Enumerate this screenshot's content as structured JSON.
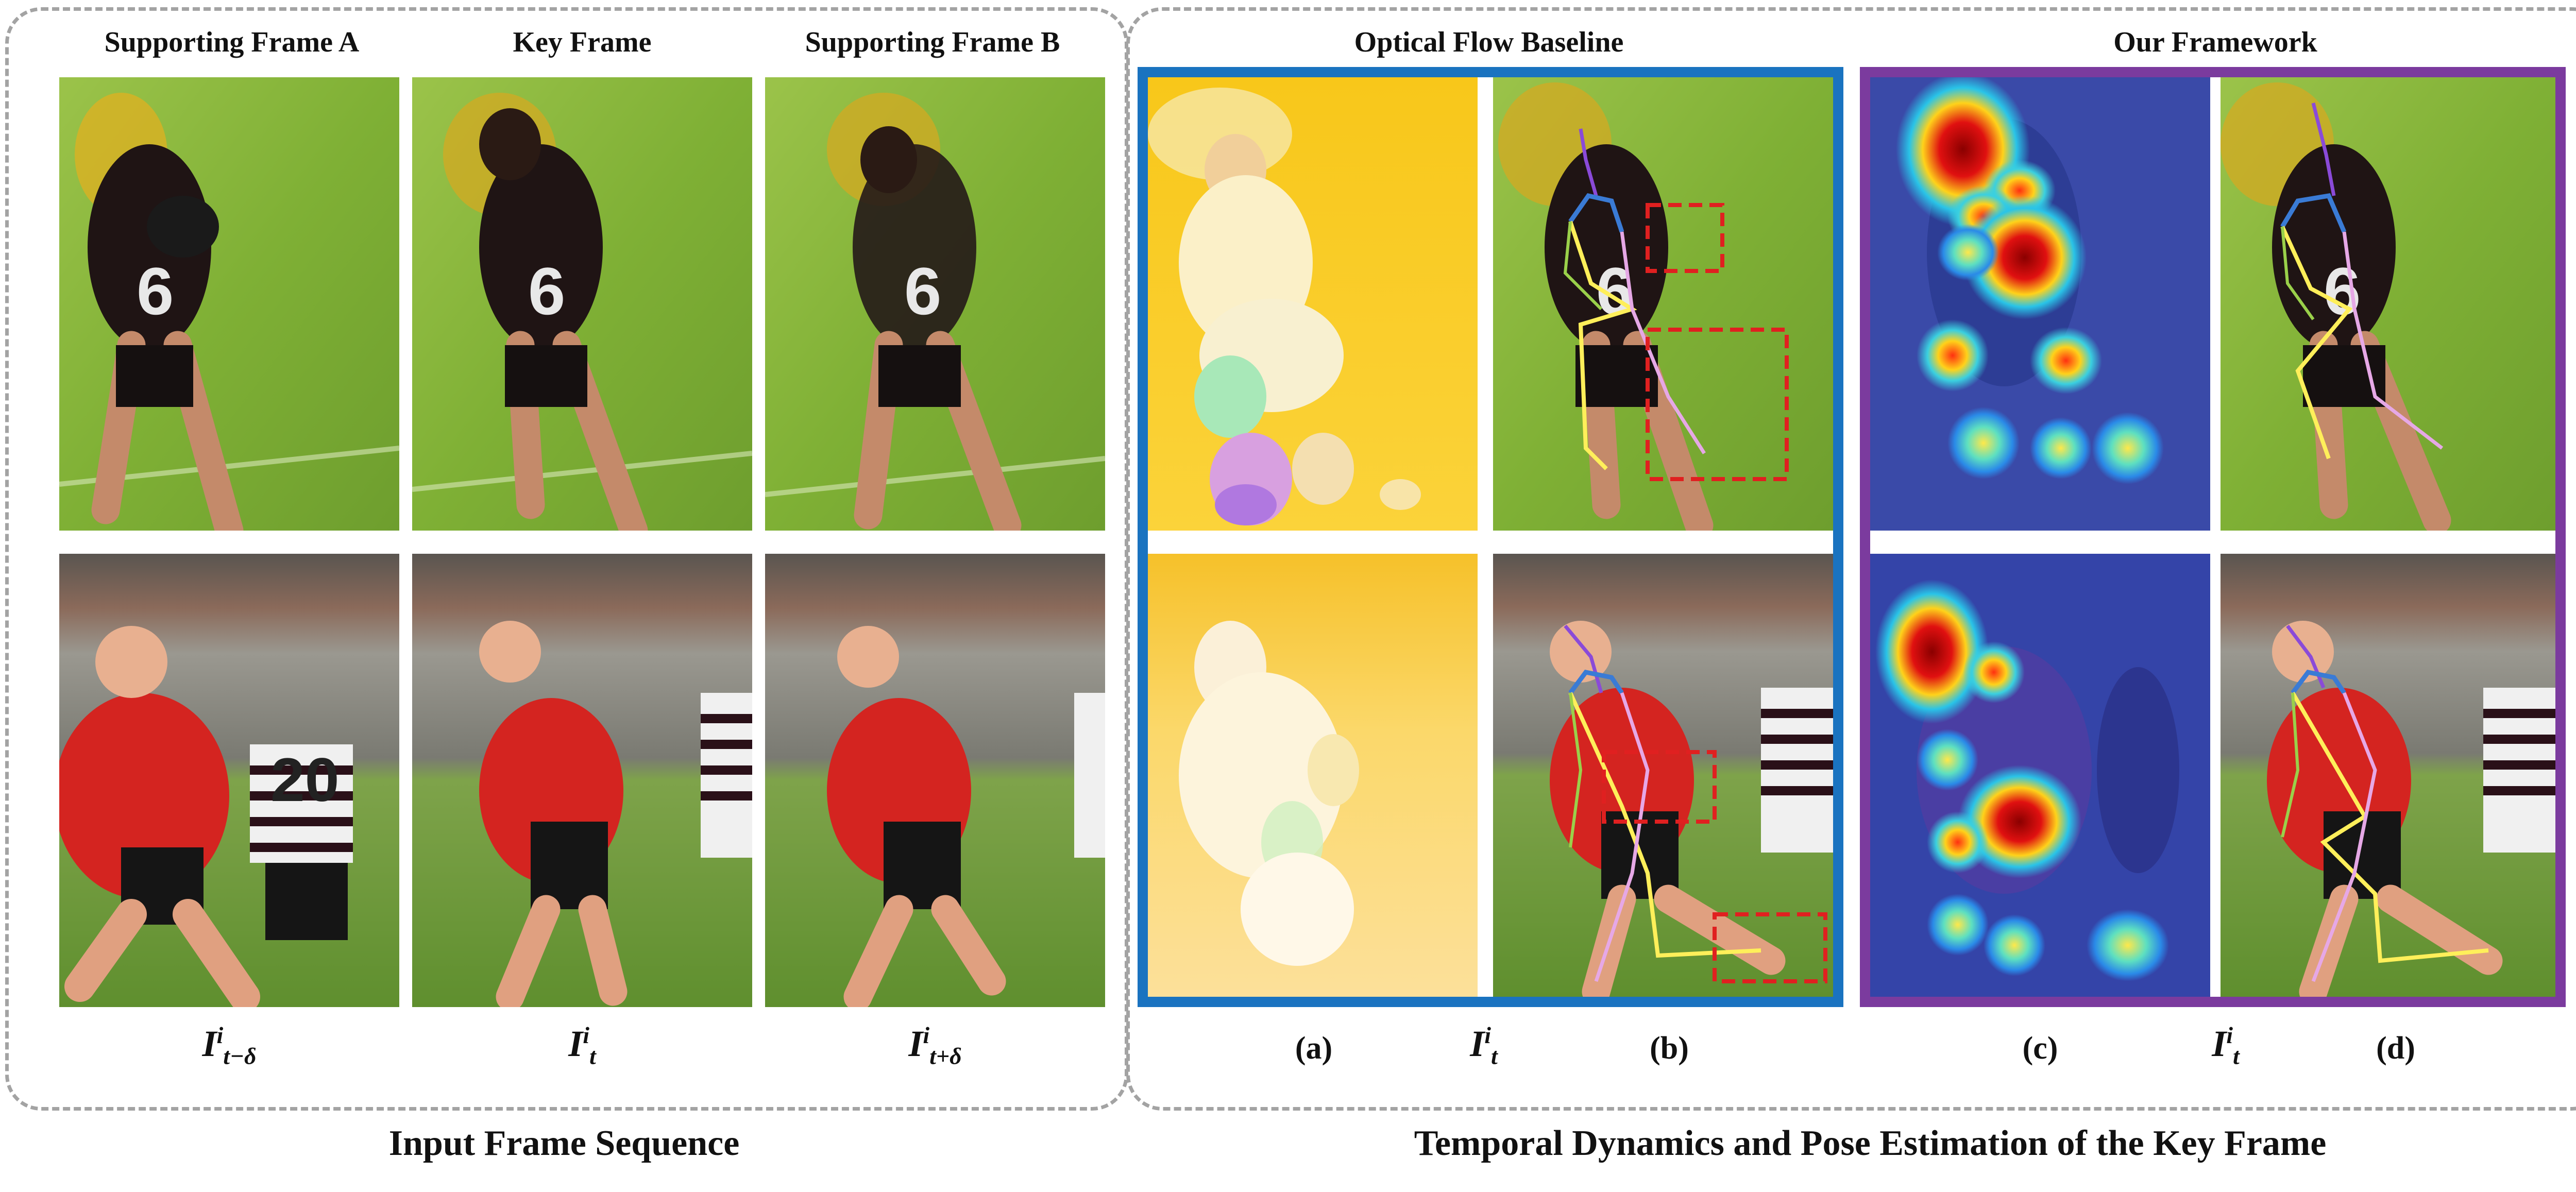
{
  "left_panel": {
    "headers": [
      "Supporting Frame A",
      "Key Frame",
      "Supporting Frame B"
    ],
    "labels": [
      {
        "base": "I",
        "sup": "i",
        "sub": "t−δ"
      },
      {
        "base": "I",
        "sup": "i",
        "sub": "t"
      },
      {
        "base": "I",
        "sup": "i",
        "sub": "t+δ"
      }
    ],
    "caption": "Input Frame Sequence"
  },
  "right_panel": {
    "header_baseline": "Optical Flow Baseline",
    "header_ours": "Our Framework",
    "sub_a": "(a)",
    "sub_b": "(b)",
    "sub_c": "(c)",
    "sub_d": "(d)",
    "mid_label_1": {
      "base": "I",
      "sup": "i",
      "sub": "t"
    },
    "mid_label_2": {
      "base": "I",
      "sup": "i",
      "sub": "t"
    },
    "caption": "Temporal Dynamics and Pose Estimation of the Key Frame"
  },
  "colors": {
    "baseline_border": "#1a73c0",
    "ours_border": "#7b3b9e",
    "dashed": "#a3a3a3",
    "highlight_box": "#e02020",
    "skeleton_head": "#3a7bd5",
    "skeleton_left": "#ffef5a",
    "skeleton_right": "#e6a8e6"
  }
}
